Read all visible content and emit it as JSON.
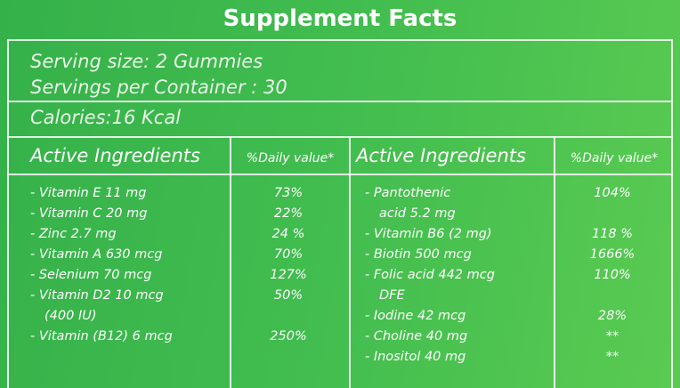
{
  "title": "Supplement Facts",
  "serving": [
    "Serving size:  2 Gummies",
    "Servings per Container : 30"
  ],
  "calories": "Calories:16 Kcal",
  "columns": [
    {
      "header": "Active Ingredients",
      "dv_header": "%Daily value*",
      "rows": [
        {
          "name": [
            "- Vitamin E 11 mg"
          ],
          "dv": "73%"
        },
        {
          "name": [
            "- Vitamin C 20 mg"
          ],
          "dv": "22%"
        },
        {
          "name": [
            "- Zinc 2.7 mg"
          ],
          "dv": "24 %"
        },
        {
          "name": [
            "- Vitamin A 630 mcg"
          ],
          "dv": "70%"
        },
        {
          "name": [
            "- Selenium 70 mcg"
          ],
          "dv": "127%"
        },
        {
          "name": [
            "- Vitamin D2 10 mcg",
            "(400 IU)"
          ],
          "dv": "50%"
        },
        {
          "name": [
            "- Vitamin (B12) 6 mcg"
          ],
          "dv": "250%"
        }
      ]
    },
    {
      "header": "Active Ingredients",
      "dv_header": "%Daily value*",
      "rows": [
        {
          "name": [
            "- Pantothenic",
            "acid 5.2 mg"
          ],
          "dv": "104%"
        },
        {
          "name": [
            "- Vitamin B6 (2 mg)"
          ],
          "dv": "118 %"
        },
        {
          "name": [
            "- Biotin 500 mcg"
          ],
          "dv": "1666%"
        },
        {
          "name": [
            "- Folic acid 442 mcg",
            "DFE"
          ],
          "dv": "110%"
        },
        {
          "name": [
            "- Iodine 42 mcg"
          ],
          "dv": "28%"
        },
        {
          "name": [
            "- Choline  40 mg"
          ],
          "dv": "**"
        },
        {
          "name": [
            "- Inositol 40 mg"
          ],
          "dv": "**"
        }
      ]
    }
  ]
}
